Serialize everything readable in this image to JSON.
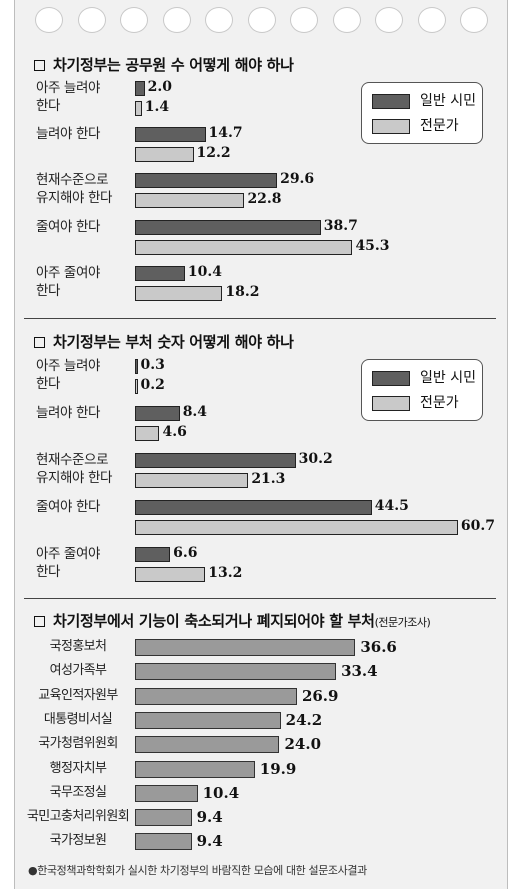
{
  "source_note": "●한국정책과학학회가 실시한 차기정부의 바람직한 모습에 대한 설문조사결과",
  "legend": {
    "general": "일반 시민",
    "expert": "전문가"
  },
  "colors": {
    "general": "#5f5f5f",
    "expert": "#c9c9c9",
    "single": "#9a9a9a"
  },
  "chart_data": [
    {
      "type": "bar",
      "orientation": "horizontal",
      "title": "□ 차기정부는 공무원 수 어떻게 해야 하나",
      "categories": [
        "아주 늘려야\n한다",
        "늘려야 한다",
        "현재수준으로\n유지해야 한다",
        "줄여야 한다",
        "아주 줄여야\n한다"
      ],
      "series": [
        {
          "name": "일반 시민",
          "values": [
            2.0,
            14.7,
            29.6,
            38.7,
            10.4
          ],
          "labels": [
            "2.0",
            "14.7",
            "29.6",
            "38.7",
            "10.4"
          ]
        },
        {
          "name": "전문가",
          "values": [
            1.4,
            12.2,
            22.8,
            45.3,
            18.2
          ],
          "labels": [
            "1.4",
            "12.2",
            "22.8",
            "45.3",
            "18.2"
          ]
        }
      ],
      "legend_position": "top-right"
    },
    {
      "type": "bar",
      "orientation": "horizontal",
      "title": "□ 차기정부는 부처 숫자 어떻게 해야 하나",
      "categories": [
        "아주 늘려야\n한다",
        "늘려야 한다",
        "현재수준으로\n유지해야 한다",
        "줄여야 한다",
        "아주 줄여야\n한다"
      ],
      "series": [
        {
          "name": "일반 시민",
          "values": [
            0.3,
            8.4,
            30.2,
            44.5,
            6.6
          ],
          "labels": [
            "0.3",
            "8.4",
            "30.2",
            "44.5",
            "6.6"
          ]
        },
        {
          "name": "전문가",
          "values": [
            0.2,
            4.6,
            21.3,
            60.7,
            13.2
          ],
          "labels": [
            "0.2",
            "4.6",
            "21.3",
            "60.7",
            "13.2"
          ]
        }
      ],
      "legend_position": "top-right"
    },
    {
      "type": "bar",
      "orientation": "horizontal",
      "title": "□ 차기정부에서 기능이 축소되거나 폐지되어야 할 부처",
      "title_note": "(전문가조사)",
      "categories": [
        "국정홍보처",
        "여성가족부",
        "교육인적자원부",
        "대통령비서실",
        "국가청렴위원회",
        "행정자치부",
        "국무조정실",
        "국민고충처리위원회",
        "국가정보원"
      ],
      "values": [
        36.6,
        33.4,
        26.9,
        24.2,
        24.0,
        19.9,
        10.4,
        9.4,
        9.4
      ],
      "labels": [
        "36.6",
        "33.4",
        "26.9",
        "24.2",
        "24.0",
        "19.9",
        "10.4",
        "9.4",
        "9.4"
      ]
    }
  ]
}
